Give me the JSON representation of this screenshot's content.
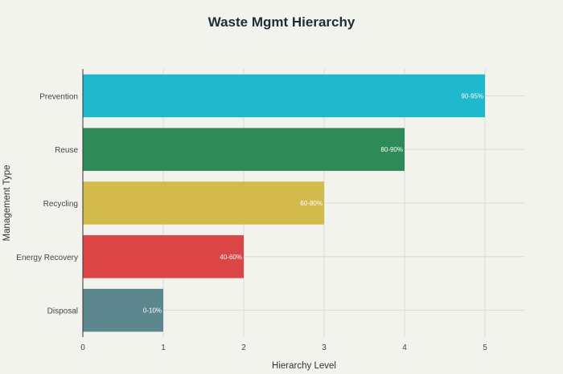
{
  "chart_data": {
    "type": "bar",
    "orientation": "horizontal",
    "title": "Waste Mgmt Hierarchy",
    "xlabel": "Hierarchy Level",
    "ylabel": "Management Type",
    "xlim": [
      0,
      5.5
    ],
    "xticks": [
      0,
      1,
      2,
      3,
      4,
      5
    ],
    "grid": true,
    "legend": "none",
    "categories": [
      "Prevention",
      "Reuse",
      "Recycling",
      "Energy Recovery",
      "Disposal"
    ],
    "values": [
      5,
      4,
      3,
      2,
      1
    ],
    "data_labels": [
      "90-95%",
      "80-90%",
      "60-80%",
      "40-60%",
      "0-10%"
    ],
    "colors": [
      "#1fb8cd",
      "#2e8b57",
      "#d2ba4c",
      "#db4545",
      "#5d878f"
    ]
  }
}
